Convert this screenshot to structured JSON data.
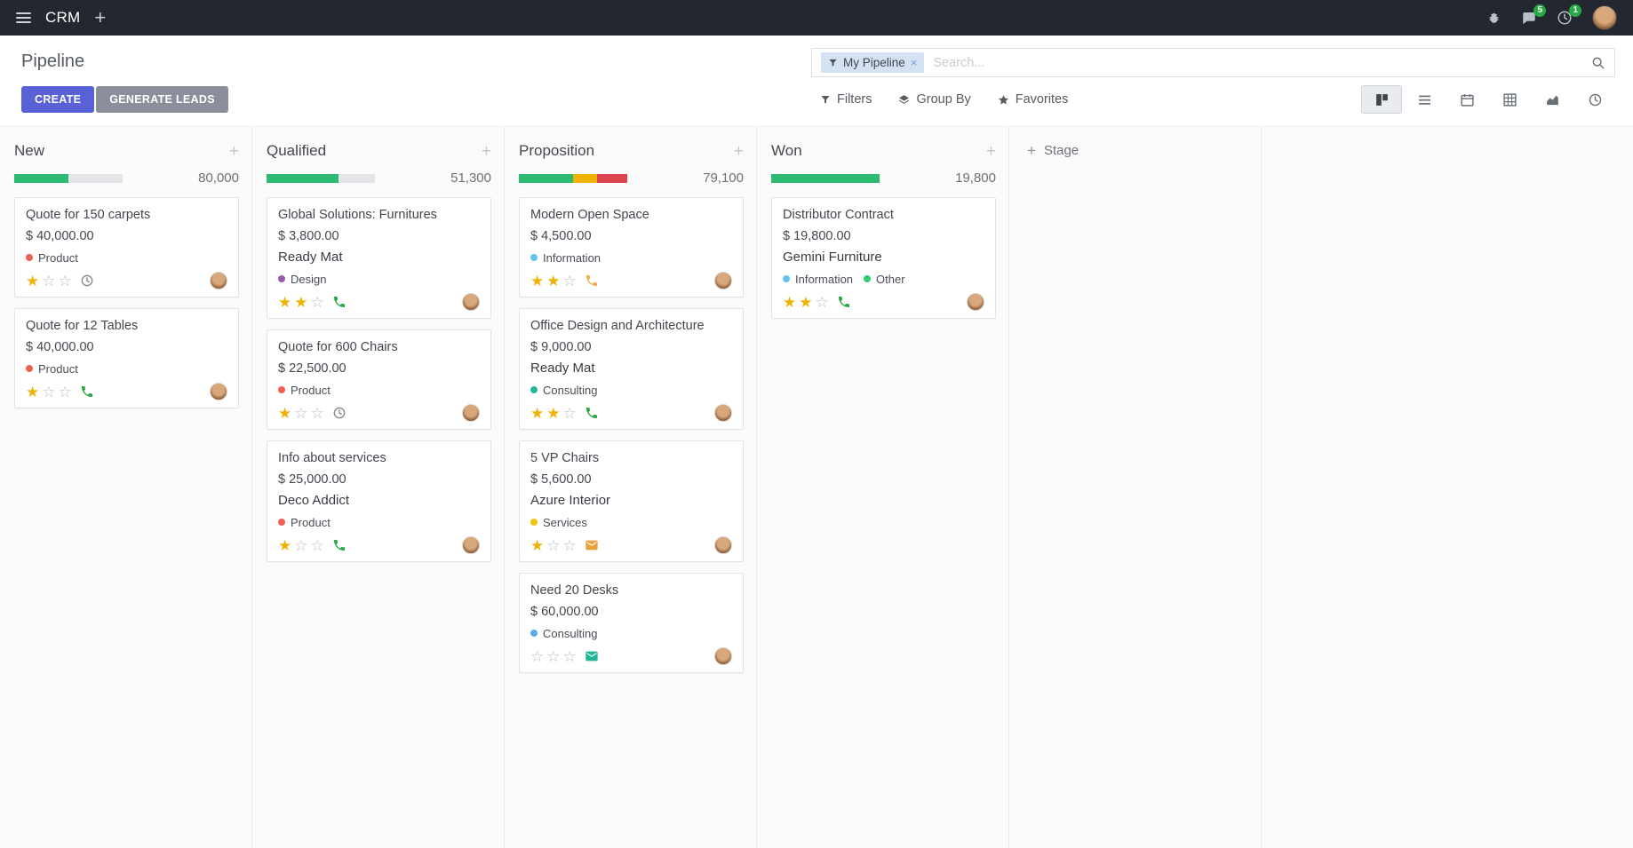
{
  "colors": {
    "accent_create": "#5961d6",
    "generate_btn": "#8b8f9c",
    "progress_green": "#2cbb70",
    "progress_yellow": "#efb300",
    "progress_red": "#dc4550",
    "star_filled": "#efb207",
    "star_empty": "#b9bdc3",
    "badge_green": "#28a745"
  },
  "topbar": {
    "app_name": "CRM",
    "message_count": "5",
    "activity_count": "1"
  },
  "control_panel": {
    "title": "Pipeline",
    "create_label": "CREATE",
    "generate_leads_label": "GENERATE LEADS",
    "search_facet": "My Pipeline",
    "search_placeholder": "Search...",
    "filters_label": "Filters",
    "group_by_label": "Group By",
    "favorites_label": "Favorites"
  },
  "board": {
    "add_stage_label": "Stage",
    "stars_total": 3,
    "columns": [
      {
        "title": "New",
        "total": "80,000",
        "segments": [
          {
            "color": "#2cbb70",
            "pct": 50
          },
          {
            "color": "#e3e5e8",
            "pct": 50
          }
        ],
        "cards": [
          {
            "title": "Quote for 150 carpets",
            "amount": "$ 40,000.00",
            "tags": [
              {
                "label": "Product",
                "color": "#f06050"
              }
            ],
            "stars": 1,
            "activity": {
              "type": "clock",
              "color": "#8a8f98"
            }
          },
          {
            "title": "Quote for 12 Tables",
            "amount": "$ 40,000.00",
            "tags": [
              {
                "label": "Product",
                "color": "#f06050"
              }
            ],
            "stars": 1,
            "activity": {
              "type": "phone",
              "color": "#28a745"
            }
          }
        ]
      },
      {
        "title": "Qualified",
        "total": "51,300",
        "segments": [
          {
            "color": "#2cbb70",
            "pct": 66
          },
          {
            "color": "#e3e5e8",
            "pct": 34
          }
        ],
        "cards": [
          {
            "title": "Global Solutions: Furnitures",
            "amount": "$ 3,800.00",
            "partner": "Ready Mat",
            "tags": [
              {
                "label": "Design",
                "color": "#9b59b6"
              }
            ],
            "stars": 2,
            "activity": {
              "type": "phone",
              "color": "#28a745"
            }
          },
          {
            "title": "Quote for 600 Chairs",
            "amount": "$ 22,500.00",
            "tags": [
              {
                "label": "Product",
                "color": "#f06050"
              }
            ],
            "stars": 1,
            "activity": {
              "type": "clock",
              "color": "#8a8f98"
            }
          },
          {
            "title": "Info about services",
            "amount": "$ 25,000.00",
            "partner": "Deco Addict",
            "tags": [
              {
                "label": "Product",
                "color": "#f06050"
              }
            ],
            "stars": 1,
            "activity": {
              "type": "phone",
              "color": "#28a745"
            }
          }
        ]
      },
      {
        "title": "Proposition",
        "total": "79,100",
        "segments": [
          {
            "color": "#2cbb70",
            "pct": 50
          },
          {
            "color": "#efb300",
            "pct": 22
          },
          {
            "color": "#dc4550",
            "pct": 28
          }
        ],
        "cards": [
          {
            "title": "Modern Open Space",
            "amount": "$ 4,500.00",
            "tags": [
              {
                "label": "Information",
                "color": "#63c3ec"
              }
            ],
            "stars": 2,
            "activity": {
              "type": "phone",
              "color": "#f0ad4e"
            }
          },
          {
            "title": "Office Design and Architecture",
            "amount": "$ 9,000.00",
            "partner": "Ready Mat",
            "tags": [
              {
                "label": "Consulting",
                "color": "#21b799"
              }
            ],
            "stars": 2,
            "activity": {
              "type": "phone",
              "color": "#28a745"
            }
          },
          {
            "title": "5 VP Chairs",
            "amount": "$ 5,600.00",
            "partner": "Azure Interior",
            "tags": [
              {
                "label": "Services",
                "color": "#f1c40f"
              }
            ],
            "stars": 1,
            "activity": {
              "type": "mail",
              "color": "#e8a33d"
            }
          },
          {
            "title": "Need 20 Desks",
            "amount": "$ 60,000.00",
            "tags": [
              {
                "label": "Consulting",
                "color": "#5da9e9"
              }
            ],
            "stars": 0,
            "activity": {
              "type": "mail",
              "color": "#21b799"
            }
          }
        ]
      },
      {
        "title": "Won",
        "total": "19,800",
        "segments": [
          {
            "color": "#2cbb70",
            "pct": 100
          }
        ],
        "cards": [
          {
            "title": "Distributor Contract",
            "amount": "$ 19,800.00",
            "partner": "Gemini Furniture",
            "tags": [
              {
                "label": "Information",
                "color": "#63c3ec"
              },
              {
                "label": "Other",
                "color": "#2ecc71"
              }
            ],
            "stars": 2,
            "activity": {
              "type": "phone",
              "color": "#28a745"
            }
          }
        ]
      }
    ]
  }
}
